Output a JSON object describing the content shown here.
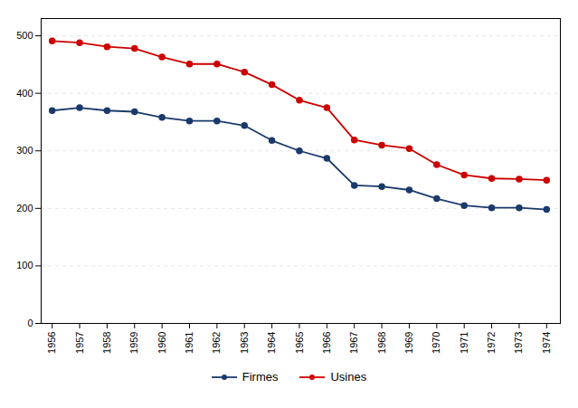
{
  "chart_data": {
    "type": "line",
    "x": [
      1956,
      1957,
      1958,
      1959,
      1960,
      1961,
      1962,
      1963,
      1964,
      1965,
      1966,
      1967,
      1968,
      1969,
      1970,
      1971,
      1972,
      1973,
      1974
    ],
    "series": [
      {
        "name": "Firmes",
        "color": "#1a3a6b",
        "values": [
          370,
          375,
          370,
          368,
          358,
          352,
          352,
          344,
          318,
          300,
          287,
          240,
          238,
          232,
          217,
          205,
          201,
          201,
          198
        ]
      },
      {
        "name": "Usines",
        "color": "#cc0000",
        "values": [
          491,
          488,
          481,
          478,
          463,
          451,
          451,
          437,
          415,
          388,
          375,
          319,
          310,
          304,
          276,
          258,
          252,
          251,
          249
        ]
      }
    ],
    "xlim": [
      1955.6,
      1974.5
    ],
    "xticks": [
      1956,
      1957,
      1958,
      1959,
      1960,
      1961,
      1962,
      1963,
      1964,
      1965,
      1966,
      1967,
      1968,
      1969,
      1970,
      1971,
      1972,
      1973,
      1974
    ],
    "ylim": [
      0,
      530
    ],
    "yticks": [
      0,
      100,
      200,
      300,
      400,
      500
    ],
    "grid": true,
    "marker": "circle",
    "legend": "bottom"
  }
}
